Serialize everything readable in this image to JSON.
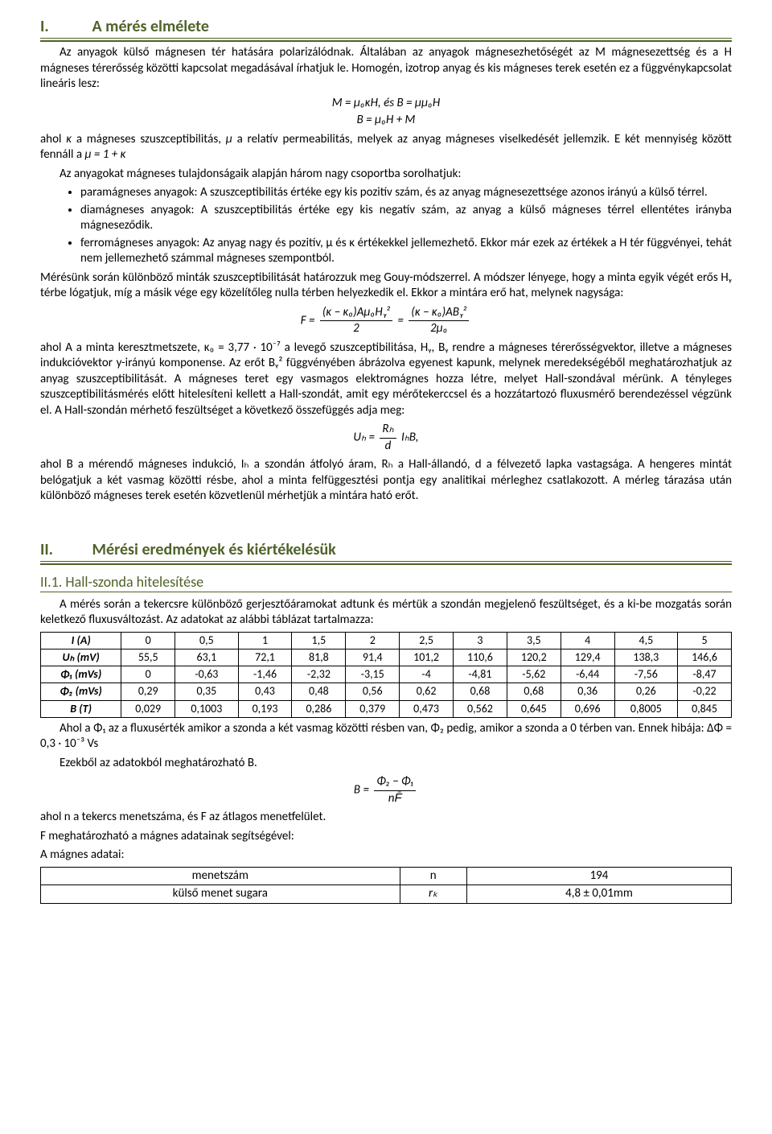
{
  "section1": {
    "num": "I.",
    "title": "A mérés elmélete",
    "p1": "Az anyagok külső mágnesen tér hatására polarizálódnak. Általában az anyagok mágnesezhetőségét az M mágnesezettség és a H mágneses térerősség közötti kapcsolat megadásával írhatjuk le. Homogén, izotrop anyag és kis mágneses terek esetén ez a függvénykapcsolat lineáris lesz:",
    "eq1": "M = μ₀κH, és B = μμ₀H",
    "eq2": "B = μ₀H + M",
    "p2a": "ahol ",
    "p2b": " a mágneses szuszceptibilitás, ",
    "p2c": " a relatív permeabilitás, melyek az anyag mágneses viselkedését jellemzik. E két mennyiség között fennáll a ",
    "p2d": "μ = 1 + κ",
    "p3": "Az anyagokat mágneses tulajdonságaik alapján három nagy csoportba sorolhatjuk:",
    "b1": "paramágneses anyagok: A szuszceptibilitás értéke egy kis pozitív szám, és az anyag mágnesezettsége azonos irányú a külső térrel.",
    "b2": "diamágneses anyagok: A szuszceptibilitás értéke egy kis negatív szám, az anyag a külső mágneses térrel ellentétes irányba mágneseződik.",
    "b3": "ferromágneses anyagok: Az anyag nagy és pozitív, μ és κ értékekkel jellemezhető. Ekkor már ezek az értékek a H tér függvényei, tehát nem jellemezhető számmal mágneses szempontból.",
    "p4": "Mérésünk során különböző minták szuszceptibilitását határozzuk meg Gouy-módszerrel. A módszer lényege, hogy a minta egyik végét erős Hᵧ térbe lógatjuk, míg a másik vége egy közelítőleg nulla térben helyezkedik el. Ekkor a mintára erő hat, melynek nagysága:",
    "eqF_lhs": "F =",
    "eqF_top1": "(κ − κ₀)Aμ₀Hᵧ²",
    "eqF_bot1": "2",
    "eqF_mid": "=",
    "eqF_top2": "(κ − κ₀)ABᵧ²",
    "eqF_bot2": "2μ₀",
    "p5": "ahol A a minta keresztmetszete, κ₀ = 3,77 · 10⁻⁷ a levegő szuszceptibilitása, Hᵧ, Bᵧ rendre a mágneses térerősségvektor, illetve a mágneses indukcióvektor y-irányú komponense. Az erőt Bᵧ² függvényében ábrázolva egyenest kapunk, melynek meredekségéből meghatározhatjuk az anyag szuszceptibilitását. A mágneses teret egy vasmagos elektromágnes hozza létre, melyet Hall-szondával mérünk. A tényleges szuszceptibilitásmérés előtt hitelesíteni kellett a Hall-szondát, amit egy mérőtekerccsel és a hozzátartozó fluxusmérő berendezéssel végzünk el. A Hall-szondán mérhető feszültséget a következő összefüggés adja meg:",
    "eqU_lhs": "Uₕ =",
    "eqU_top": "Rₕ",
    "eqU_bot": "d",
    "eqU_rhs": "IₕB,",
    "p6": "ahol B a mérendő mágneses indukció, Iₕ a szondán átfolyó áram, Rₕ a Hall-állandó, d a félvezető lapka vastagsága. A hengeres mintát belógatjuk a két vasmag közötti résbe, ahol a minta felfüggesztési pontja egy analitikai mérleghez csatlakozott. A mérleg tárazása után különböző mágneses terek esetén közvetlenül mérhetjük a mintára ható erőt."
  },
  "section2": {
    "num": "II.",
    "title": "Mérési eredmények és kiértékelésük",
    "sub1_num": "II.1.",
    "sub1_title": "Hall-szonda hitelesítése",
    "p1": "A mérés során a tekercsre különböző gerjesztőáramokat adtunk és mértük a szondán megjelenő feszültséget, és a ki-be mozgatás során keletkező fluxusváltozást. Az adatokat az alábbi táblázat tartalmazza:",
    "table": {
      "headers": [
        "I (A)",
        "Uₕ (mV)",
        "Φ₁ (mVs)",
        "Φ₂ (mVs)",
        "B (T)"
      ],
      "cols": [
        "0",
        "0,5",
        "1",
        "1,5",
        "2",
        "2,5",
        "3",
        "3,5",
        "4",
        "4,5",
        "5"
      ],
      "rows": [
        [
          "55,5",
          "63,1",
          "72,1",
          "81,8",
          "91,4",
          "101,2",
          "110,6",
          "120,2",
          "129,4",
          "138,3",
          "146,6"
        ],
        [
          "0",
          "-0,63",
          "-1,46",
          "-2,32",
          "-3,15",
          "-4",
          "-4,81",
          "-5,62",
          "-6,44",
          "-7,56",
          "-8,47"
        ],
        [
          "0,29",
          "0,35",
          "0,43",
          "0,48",
          "0,56",
          "0,62",
          "0,68",
          "0,68",
          "0,36",
          "0,26",
          "-0,22"
        ],
        [
          "0,029",
          "0,1003",
          "0,193",
          "0,286",
          "0,379",
          "0,473",
          "0,562",
          "0,645",
          "0,696",
          "0,8005",
          "0,845"
        ]
      ]
    },
    "p2": "Ahol a Φ₁ az a fluxusérték amikor a szonda a két vasmag közötti résben van, Φ₂ pedig, amikor a szonda a 0 térben van. Ennek hibája: ΔΦ = 0,3 · 10⁻³ Vs",
    "p3": "Ezekből az adatokból meghatározható B.",
    "eqB_lhs": "B =",
    "eqB_top": "Φ₂ − Φ₁",
    "eqB_bot": "nF̄",
    "p4": "ahol n a tekercs menetszáma, és F az átlagos menetfelület.",
    "p5": "F meghatározható a mágnes adatainak segítségével:",
    "p6": "A mágnes adatai:",
    "props": {
      "r1": [
        "menetszám",
        "n",
        "194"
      ],
      "r2": [
        "külső menet sugara",
        "rₖ",
        "4,8 ± 0,01mm"
      ]
    }
  }
}
